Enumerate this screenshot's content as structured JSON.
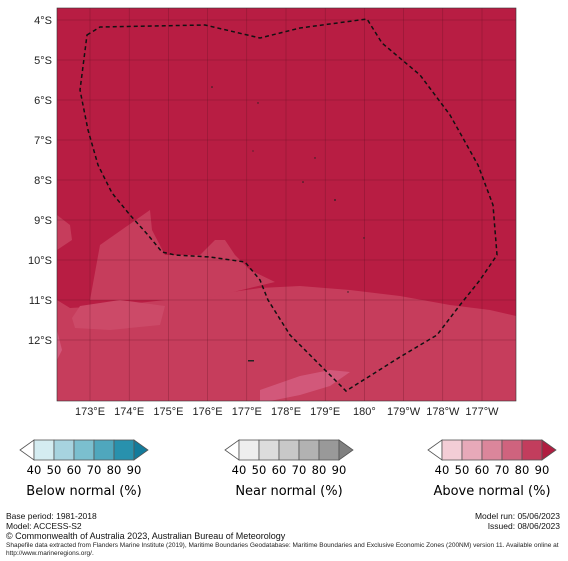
{
  "map": {
    "lat_labels": [
      "4°S",
      "5°S",
      "6°S",
      "7°S",
      "8°S",
      "9°S",
      "10°S",
      "11°S",
      "12°S"
    ],
    "lon_labels": [
      "173°E",
      "174°E",
      "175°E",
      "176°E",
      "177°E",
      "178°E",
      "179°E",
      "180°",
      "179°W",
      "178°W",
      "177°W"
    ],
    "colors": {
      "above_90": "#b81d43",
      "above_80": "#c63d5c",
      "above_70": "#d2587a",
      "grid": "#5a1020",
      "eez_line": "#111111"
    }
  },
  "legends": [
    {
      "title": "Below normal (%)",
      "ticks": [
        "40",
        "50",
        "60",
        "70",
        "80",
        "90"
      ],
      "colors": [
        "#ffffff",
        "#d4ecf1",
        "#a7d3df",
        "#7bbfcf",
        "#4fa7bd",
        "#2891ad",
        "#137b9b"
      ]
    },
    {
      "title": "Near normal (%)",
      "ticks": [
        "40",
        "50",
        "60",
        "70",
        "80",
        "90"
      ],
      "colors": [
        "#ffffff",
        "#eeeeee",
        "#dcdcdc",
        "#c8c8c8",
        "#b2b2b2",
        "#999999",
        "#808080"
      ]
    },
    {
      "title": "Above normal (%)",
      "ticks": [
        "40",
        "50",
        "60",
        "70",
        "80",
        "90"
      ],
      "colors": [
        "#ffffff",
        "#f3cdd6",
        "#e7a9b9",
        "#db869b",
        "#cf637e",
        "#c23d5d",
        "#b01d40"
      ]
    }
  ],
  "footer": {
    "base_period": "Base period: 1981-2018",
    "model": "Model: ACCESS-S2",
    "model_run": "Model run: 05/06/2023",
    "issued": "Issued: 08/06/2023",
    "credit": "© Commonwealth of Australia 2023, Australian Bureau of Meteorology",
    "source": "Shapefile data extracted from Flanders Marine Institute (2019), Maritime Boundaries Geodatabase: Maritime Boundaries and Exclusive Economic Zones (200NM) version 11. Available online at http://www.marineregions.org/."
  }
}
